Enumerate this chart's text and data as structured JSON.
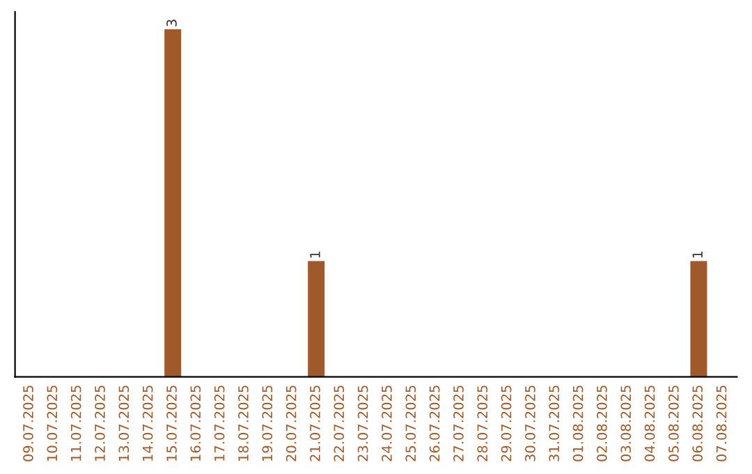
{
  "chart_data": {
    "type": "bar",
    "categories": [
      "09.07.2025",
      "10.07.2025",
      "11.07.2025",
      "12.07.2025",
      "13.07.2025",
      "14.07.2025",
      "15.07.2025",
      "16.07.2025",
      "17.07.2025",
      "18.07.2025",
      "19.07.2025",
      "20.07.2025",
      "21.07.2025",
      "22.07.2025",
      "23.07.2025",
      "24.07.2025",
      "25.07.2025",
      "26.07.2025",
      "27.07.2025",
      "28.07.2025",
      "29.07.2025",
      "30.07.2025",
      "31.07.2025",
      "01.08.2025",
      "02.08.2025",
      "03.08.2025",
      "04.08.2025",
      "05.08.2025",
      "06.08.2025",
      "07.08.2025"
    ],
    "values": [
      0,
      0,
      0,
      0,
      0,
      0,
      3,
      0,
      0,
      0,
      0,
      0,
      1,
      0,
      0,
      0,
      0,
      0,
      0,
      0,
      0,
      0,
      0,
      0,
      0,
      0,
      0,
      0,
      1,
      0
    ],
    "value_labels": [
      null,
      null,
      null,
      null,
      null,
      null,
      "3",
      null,
      null,
      null,
      null,
      null,
      "1",
      null,
      null,
      null,
      null,
      null,
      null,
      null,
      null,
      null,
      null,
      null,
      null,
      null,
      null,
      null,
      "1",
      null
    ],
    "color": "#a0592a",
    "tick_labels": "x",
    "grid": false,
    "legend": false
  }
}
